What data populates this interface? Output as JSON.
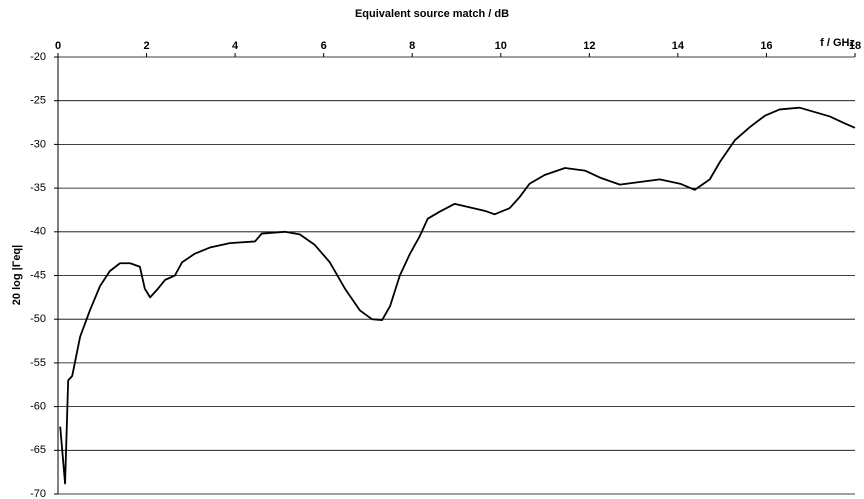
{
  "chart_data": {
    "type": "line",
    "title": "Equivalent source match / dB",
    "x_label": "f / GHz",
    "y_label": "20 log |Γeq|",
    "x": [
      0.05,
      0.16,
      0.23,
      0.32,
      0.5,
      0.72,
      0.95,
      1.17,
      1.4,
      1.63,
      1.85,
      1.96,
      2.08,
      2.26,
      2.42,
      2.64,
      2.8,
      3.09,
      3.43,
      3.88,
      4.45,
      4.6,
      5.12,
      5.46,
      5.8,
      6.14,
      6.48,
      6.82,
      7.09,
      7.32,
      7.5,
      7.72,
      7.95,
      8.17,
      8.35,
      8.62,
      8.96,
      9.3,
      9.64,
      9.86,
      10.2,
      10.43,
      10.65,
      10.99,
      11.45,
      11.9,
      12.24,
      12.69,
      13.14,
      13.59,
      14.05,
      14.38,
      14.72,
      14.95,
      15.29,
      15.63,
      15.97,
      16.3,
      16.75,
      17.09,
      17.43,
      17.77,
      18.0
    ],
    "values": [
      -62.3,
      -68.8,
      -57,
      -56.5,
      -52,
      -49,
      -46.2,
      -44.5,
      -43.6,
      -43.6,
      -44,
      -46.5,
      -47.5,
      -46.5,
      -45.5,
      -45,
      -43.5,
      -42.5,
      -41.8,
      -41.3,
      -41.1,
      -40.2,
      -40,
      -40.3,
      -41.5,
      -43.5,
      -46.5,
      -49,
      -50,
      -50.1,
      -48.5,
      -45,
      -42.5,
      -40.5,
      -38.5,
      -37.7,
      -36.8,
      -37.2,
      -37.6,
      -38,
      -37.3,
      -36,
      -34.5,
      -33.5,
      -32.7,
      -33,
      -33.8,
      -34.6,
      -34.3,
      -34,
      -34.5,
      -35.2,
      -34,
      -32,
      -29.5,
      -28,
      -26.7,
      -26,
      -25.8,
      -26.3,
      -26.8,
      -27.6,
      -28.1
    ],
    "color": "#000000",
    "xlim": [
      0,
      18
    ],
    "xticks": [
      0,
      2,
      4,
      6,
      8,
      10,
      12,
      14,
      16,
      18
    ],
    "ylim": [
      -70,
      -20
    ],
    "yticks": [
      -20,
      -25,
      -30,
      -35,
      -40,
      -45,
      -50,
      -55,
      -60,
      -65,
      -70
    ],
    "grid": true
  }
}
